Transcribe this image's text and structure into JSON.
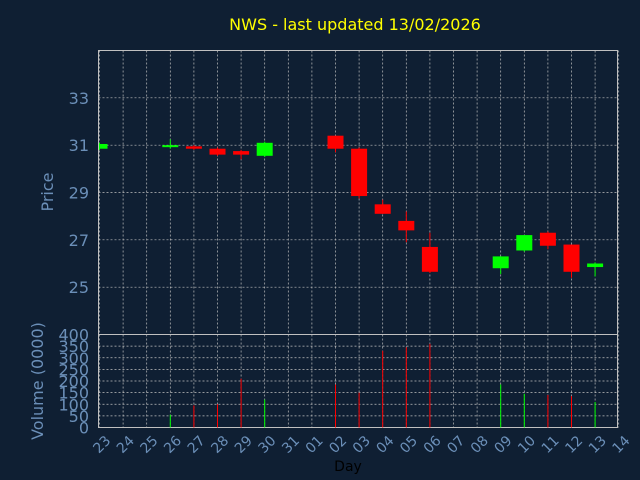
{
  "chart_data": {
    "title": "NWS - last updated 13/02/2026",
    "type": "candlestick",
    "colors": {
      "up": "#00ff00",
      "down": "#ff0000",
      "background": "#0f1f33",
      "text": "#6b8fb8",
      "title": "#ffff00"
    },
    "price_panel": {
      "ylabel": "Price",
      "ylim": [
        23.0,
        35.0
      ],
      "yticks": [
        25,
        27,
        29,
        31,
        33
      ],
      "grid": true
    },
    "volume_panel": {
      "ylabel": "Volume (0000)",
      "ylim": [
        0,
        400
      ],
      "yticks": [
        0,
        50,
        100,
        150,
        200,
        250,
        300,
        350,
        400
      ],
      "grid": true
    },
    "xlabel": "Day",
    "x_ticks": [
      "23",
      "24",
      "25",
      "26",
      "27",
      "28",
      "29",
      "30",
      "31",
      "01",
      "02",
      "03",
      "04",
      "05",
      "06",
      "07",
      "08",
      "09",
      "10",
      "11",
      "12",
      "13",
      "14"
    ],
    "candles": [
      {
        "day": "23",
        "open": 30.85,
        "close": 31.05,
        "high": 31.1,
        "low": 30.8,
        "volume": 0
      },
      {
        "day": "26",
        "open": 30.95,
        "close": 31.0,
        "high": 31.25,
        "low": 30.85,
        "volume": 55
      },
      {
        "day": "27",
        "open": 30.95,
        "close": 30.85,
        "high": 31.0,
        "low": 30.8,
        "volume": 95
      },
      {
        "day": "28",
        "open": 30.85,
        "close": 30.6,
        "high": 30.9,
        "low": 30.55,
        "volume": 100
      },
      {
        "day": "29",
        "open": 30.75,
        "close": 30.6,
        "high": 30.8,
        "low": 30.4,
        "volume": 210
      },
      {
        "day": "30",
        "open": 30.55,
        "close": 31.1,
        "high": 31.15,
        "low": 30.5,
        "volume": 120
      },
      {
        "day": "02",
        "open": 31.4,
        "close": 30.85,
        "high": 31.4,
        "low": 30.7,
        "volume": 185
      },
      {
        "day": "03",
        "open": 30.85,
        "close": 28.85,
        "high": 30.9,
        "low": 28.75,
        "volume": 150
      },
      {
        "day": "04",
        "open": 28.5,
        "close": 28.1,
        "high": 28.7,
        "low": 28.1,
        "volume": 330
      },
      {
        "day": "05",
        "open": 27.8,
        "close": 27.4,
        "high": 28.2,
        "low": 26.9,
        "volume": 345
      },
      {
        "day": "06",
        "open": 26.7,
        "close": 25.65,
        "high": 27.3,
        "low": 25.6,
        "volume": 360
      },
      {
        "day": "09",
        "open": 25.8,
        "close": 26.3,
        "high": 26.3,
        "low": 25.55,
        "volume": 185
      },
      {
        "day": "10",
        "open": 26.55,
        "close": 27.2,
        "high": 27.2,
        "low": 26.5,
        "volume": 145
      },
      {
        "day": "11",
        "open": 27.3,
        "close": 26.75,
        "high": 27.35,
        "low": 26.6,
        "volume": 140
      },
      {
        "day": "12",
        "open": 26.8,
        "close": 25.65,
        "high": 26.8,
        "low": 25.4,
        "volume": 135
      },
      {
        "day": "13",
        "open": 25.85,
        "close": 26.0,
        "high": 26.05,
        "low": 25.45,
        "volume": 110
      }
    ]
  }
}
